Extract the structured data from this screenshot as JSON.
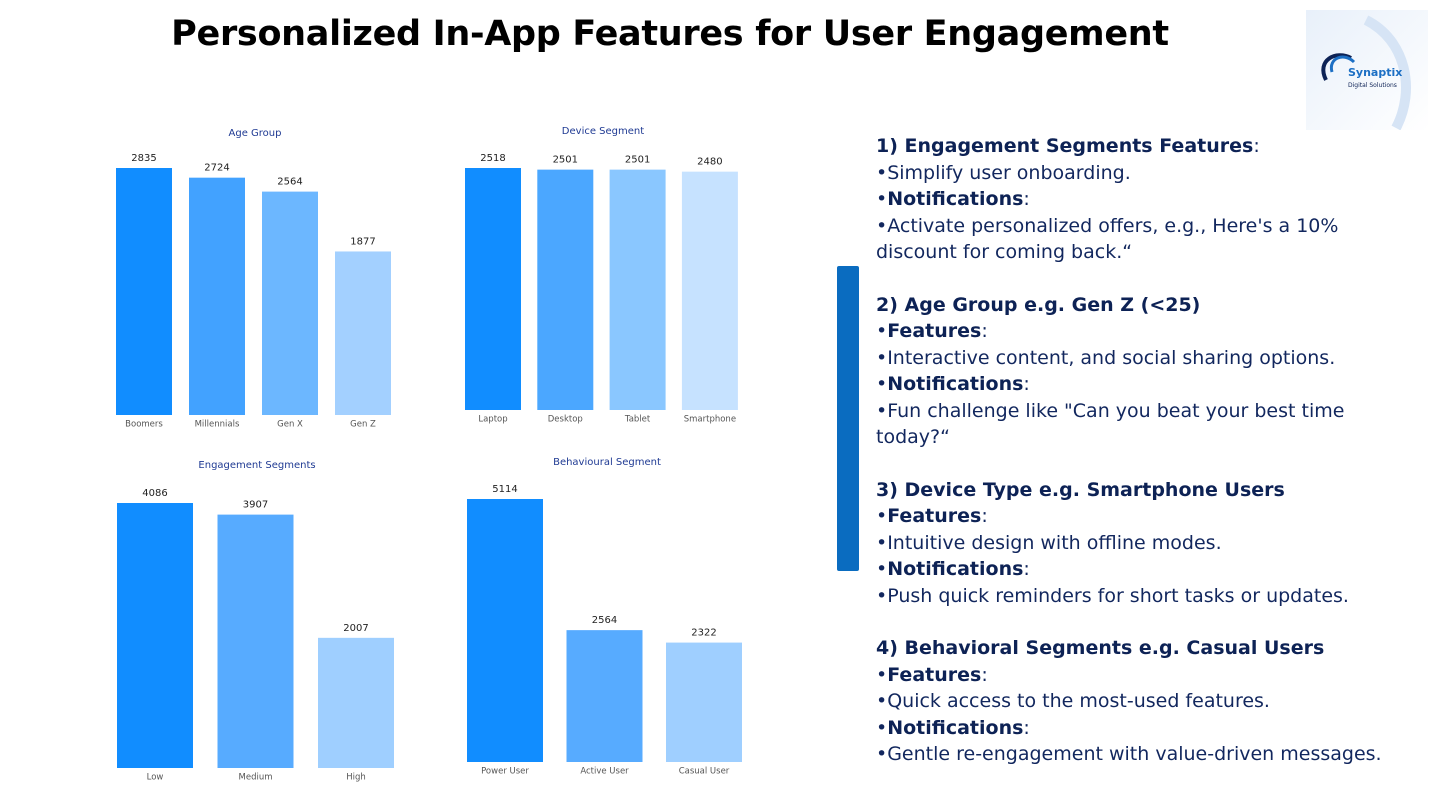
{
  "header": {
    "title": "Personalized In-App Features for User Engagement"
  },
  "logo": {
    "name": "Synaptix",
    "tagline": "Digital Solutions"
  },
  "chart_data": [
    {
      "type": "bar",
      "title": "Age Group",
      "categories": [
        "Boomers",
        "Millennials",
        "Gen X",
        "Gen Z"
      ],
      "values": [
        2835,
        2724,
        2564,
        1877
      ],
      "colors": [
        "#118dff",
        "#42a2ff",
        "#6cb7ff",
        "#a3d0ff"
      ]
    },
    {
      "type": "bar",
      "title": "Device Segment",
      "categories": [
        "Laptop",
        "Desktop",
        "Tablet",
        "Smartphone"
      ],
      "values": [
        2518,
        2501,
        2501,
        2480
      ],
      "colors": [
        "#118dff",
        "#4ba7ff",
        "#8ac7ff",
        "#c6e2ff"
      ]
    },
    {
      "type": "bar",
      "title": "Engagement Segments",
      "categories": [
        "Low",
        "Medium",
        "High"
      ],
      "values": [
        4086,
        3907,
        2007
      ],
      "colors": [
        "#118dff",
        "#57abff",
        "#9fcfff"
      ]
    },
    {
      "type": "bar",
      "title": "Behavioural Segment",
      "categories": [
        "Power User",
        "Active User",
        "Casual User"
      ],
      "values": [
        5114,
        2564,
        2322
      ],
      "colors": [
        "#118dff",
        "#57abff",
        "#9fcfff"
      ]
    }
  ],
  "sections": [
    {
      "lines": [
        [
          {
            "text": "1) Engagement Segments Features",
            "style": "heading"
          },
          {
            "text": ":"
          }
        ],
        [
          {
            "text": "•Simplify user onboarding."
          }
        ],
        [
          {
            "text": "•"
          },
          {
            "text": "Notifications",
            "style": "bold"
          },
          {
            "text": ":"
          }
        ],
        [
          {
            "text": "•Activate personalized offers, e.g., Here's a 10% discount for coming back.“"
          }
        ]
      ]
    },
    {
      "lines": [
        [
          {
            "text": "2) Age Group e.g. Gen Z (<25)",
            "style": "heading"
          }
        ],
        [
          {
            "text": "•"
          },
          {
            "text": "Features",
            "style": "bold"
          },
          {
            "text": ":"
          }
        ],
        [
          {
            "text": "•Interactive content, and social sharing options."
          }
        ],
        [
          {
            "text": "•"
          },
          {
            "text": "Notifications",
            "style": "bold"
          },
          {
            "text": ":"
          }
        ],
        [
          {
            "text": "•Fun challenge like \"Can you beat your best time today?“"
          }
        ]
      ]
    },
    {
      "lines": [
        [
          {
            "text": "3) Device Type e.g. Smartphone Users",
            "style": "heading"
          }
        ],
        [
          {
            "text": "•"
          },
          {
            "text": "Features",
            "style": "bold"
          },
          {
            "text": ":"
          }
        ],
        [
          {
            "text": "•Intuitive design with offline modes."
          }
        ],
        [
          {
            "text": "•"
          },
          {
            "text": "Notifications",
            "style": "bold"
          },
          {
            "text": ":"
          }
        ],
        [
          {
            "text": "•Push quick reminders for short tasks or updates."
          }
        ]
      ]
    },
    {
      "lines": [
        [
          {
            "text": "4) Behavioral Segments e.g. Casual Users",
            "style": "heading"
          }
        ],
        [
          {
            "text": "•"
          },
          {
            "text": "Features",
            "style": "bold"
          },
          {
            "text": ":"
          }
        ],
        [
          {
            "text": "•Quick access to the most-used features."
          }
        ],
        [
          {
            "text": "•"
          },
          {
            "text": "Notifications",
            "style": "bold"
          },
          {
            "text": ":"
          }
        ],
        [
          {
            "text": "•Gentle re-engagement with value-driven messages."
          }
        ]
      ]
    }
  ]
}
